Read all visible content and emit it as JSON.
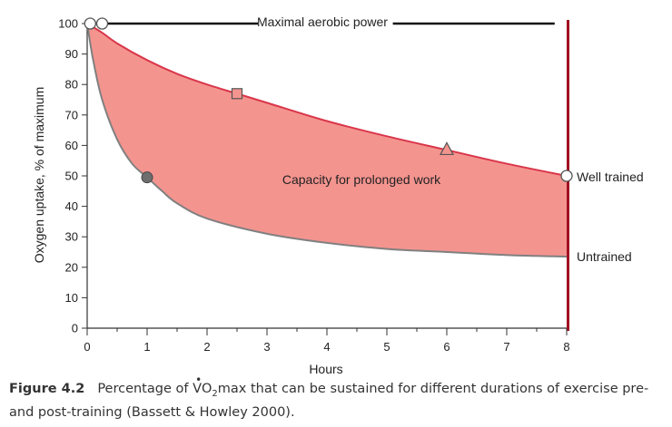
{
  "chart_data": {
    "type": "area",
    "title": "",
    "xlabel": "Hours",
    "ylabel": "Oxygen uptake, % of maximum",
    "xlim": [
      0,
      8
    ],
    "ylim": [
      0,
      100
    ],
    "x_ticks": [
      0,
      1,
      2,
      3,
      4,
      5,
      6,
      7,
      8
    ],
    "y_ticks": [
      0,
      10,
      20,
      30,
      40,
      50,
      60,
      70,
      80,
      90,
      100
    ],
    "series": [
      {
        "name": "Well trained",
        "color": "#d9364a",
        "x": [
          0,
          0.25,
          0.5,
          1,
          1.5,
          2,
          2.5,
          3,
          4,
          5,
          6,
          7,
          8
        ],
        "y": [
          100,
          97,
          93.5,
          88,
          83.5,
          80,
          77,
          74,
          68,
          63,
          58.5,
          54,
          50
        ],
        "marker": {
          "x": 2.5,
          "y": 77,
          "shape": "square"
        }
      },
      {
        "name": "Untrained",
        "color": "#808080",
        "x": [
          0,
          0.1,
          0.25,
          0.5,
          0.75,
          1,
          1.25,
          1.5,
          2,
          3,
          4,
          5,
          6,
          7,
          8
        ],
        "y": [
          100,
          88,
          75,
          62,
          54,
          49.5,
          45,
          41,
          36,
          31,
          28,
          26,
          25,
          24,
          23.5
        ],
        "marker": {
          "x": 1,
          "y": 49.5,
          "shape": "circle"
        }
      }
    ],
    "extra_marker": {
      "x": 6,
      "y": 58.5,
      "shape": "triangle"
    },
    "fill_color": "#f4948f",
    "annotations": {
      "max_line": "Maximal aerobic power",
      "region": "Capacity for prolonged work",
      "well_trained": "Well trained",
      "untrained": "Untrained"
    }
  },
  "caption": {
    "figure_label": "Figure 4.2",
    "text_before": "Percentage of ",
    "v": "V",
    "o": "O",
    "sub": "2",
    "text_after": "max that can be sustained for different durations of exercise pre- and post-training (Bassett & Howley 2000)."
  },
  "colors": {
    "axis": "#333333",
    "right_bar": "#a01020"
  }
}
